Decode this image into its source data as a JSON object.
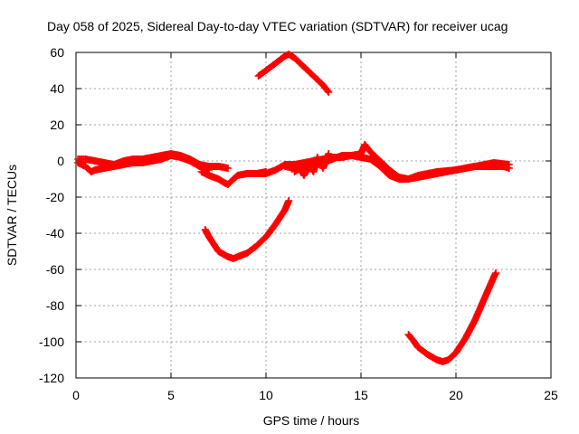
{
  "chart_data": {
    "type": "scatter",
    "title": "Day 058 of 2025, Sidereal Day-to-day VTEC variation (SDTVAR) for receiver ucag",
    "xlabel": "GPS time / hours",
    "ylabel": "SDTVAR / TECUs",
    "xlim": [
      0,
      25
    ],
    "ylim": [
      -120,
      60
    ],
    "xticks": [
      0,
      5,
      10,
      15,
      20,
      25
    ],
    "yticks": [
      -120,
      -100,
      -80,
      -60,
      -40,
      -20,
      0,
      20,
      40,
      60
    ],
    "xtick_labels": [
      "0",
      "5",
      "10",
      "15",
      "20",
      "25"
    ],
    "ytick_labels": [
      "-120",
      "-100",
      "-80",
      "-60",
      "-40",
      "-20",
      "0",
      "20",
      "40",
      "60"
    ],
    "grid": true,
    "marker": "plus",
    "color": "#ff0000",
    "series": [
      {
        "name": "track-main-1",
        "x": [
          0.1,
          0.5,
          1.0,
          1.5,
          2.0,
          2.5,
          3.0,
          3.5,
          4.0,
          4.5,
          5.0,
          5.5,
          6.0,
          6.5,
          7.0,
          7.5,
          8.0
        ],
        "y": [
          1,
          1,
          0,
          -1,
          -2,
          0,
          1,
          1,
          2,
          3,
          4,
          3,
          1,
          -2,
          -3,
          -3,
          -4
        ]
      },
      {
        "name": "track-main-1-lower",
        "x": [
          0.1,
          0.5,
          0.8,
          1.0,
          1.5,
          2.0,
          2.5,
          3.0,
          3.5,
          4.0,
          4.5,
          5.0,
          5.5,
          6.0,
          6.5,
          7.0
        ],
        "y": [
          -1,
          -3,
          -6,
          -5,
          -4,
          -3,
          -2,
          -1,
          -1,
          0,
          1,
          3,
          2,
          0,
          -3,
          -5
        ]
      },
      {
        "name": "track-dip-8",
        "x": [
          6.6,
          7.0,
          7.5,
          7.8,
          8.0,
          8.2,
          8.5,
          9.0,
          9.5,
          10.0
        ],
        "y": [
          -6,
          -8,
          -10,
          -12,
          -13,
          -11,
          -8,
          -7,
          -7,
          -6
        ]
      },
      {
        "name": "track-main-2",
        "x": [
          9.5,
          10.0,
          10.5,
          11.0,
          11.5,
          12.0,
          12.5,
          13.0,
          13.5,
          14.0,
          14.5,
          15.0,
          15.5,
          16.0,
          16.5,
          17.0,
          17.5,
          18.0,
          18.5,
          19.0,
          19.5,
          20.0,
          20.5,
          21.0,
          21.5,
          22.0,
          22.5,
          22.8
        ],
        "y": [
          -7,
          -7,
          -5,
          -2,
          -2,
          -1,
          0,
          1,
          2,
          2,
          3,
          2,
          1,
          -3,
          -8,
          -10,
          -10,
          -9,
          -8,
          -7,
          -6,
          -5,
          -4,
          -3,
          -3,
          -3,
          -3,
          -4
        ]
      },
      {
        "name": "track-main-2-upper",
        "x": [
          11.0,
          11.5,
          12.0,
          12.5,
          13.0,
          13.5,
          14.0,
          14.5,
          15.0,
          15.2,
          15.5,
          16.0,
          16.5,
          17.0,
          17.5,
          18.0,
          19.0,
          20.0,
          21.0,
          22.0,
          22.8
        ],
        "y": [
          -3,
          -4,
          -5,
          -3,
          -1,
          1,
          3,
          3,
          4,
          9,
          5,
          0,
          -5,
          -9,
          -10,
          -8,
          -6,
          -5,
          -3,
          -1,
          -2
        ]
      },
      {
        "name": "track-scatter-12-13",
        "x": [
          11.5,
          11.8,
          12.0,
          12.3,
          12.5,
          12.7,
          13.0,
          13.3
        ],
        "y": [
          -6,
          -4,
          -8,
          -2,
          -6,
          2,
          -4,
          4
        ]
      },
      {
        "name": "track-upper-arc",
        "x": [
          9.6,
          10.0,
          10.5,
          11.0,
          11.2,
          11.5,
          12.0,
          12.5,
          13.0,
          13.3
        ],
        "y": [
          47,
          50,
          54,
          58,
          59,
          57,
          52,
          47,
          42,
          38
        ]
      },
      {
        "name": "track-arc-minus50",
        "x": [
          6.8,
          7.0,
          7.5,
          8.0,
          8.3,
          8.5,
          9.0,
          9.5,
          10.0,
          10.5,
          11.0,
          11.2
        ],
        "y": [
          -38,
          -42,
          -50,
          -53,
          -54,
          -53,
          -51,
          -47,
          -42,
          -35,
          -27,
          -22
        ]
      },
      {
        "name": "track-arc-minus110",
        "x": [
          17.5,
          17.8,
          18.0,
          18.5,
          19.0,
          19.3,
          19.6,
          20.0,
          20.5,
          21.0,
          21.5,
          22.0,
          22.1
        ],
        "y": [
          -96,
          -100,
          -103,
          -107,
          -110,
          -111,
          -110,
          -106,
          -98,
          -88,
          -76,
          -64,
          -62
        ]
      }
    ]
  }
}
